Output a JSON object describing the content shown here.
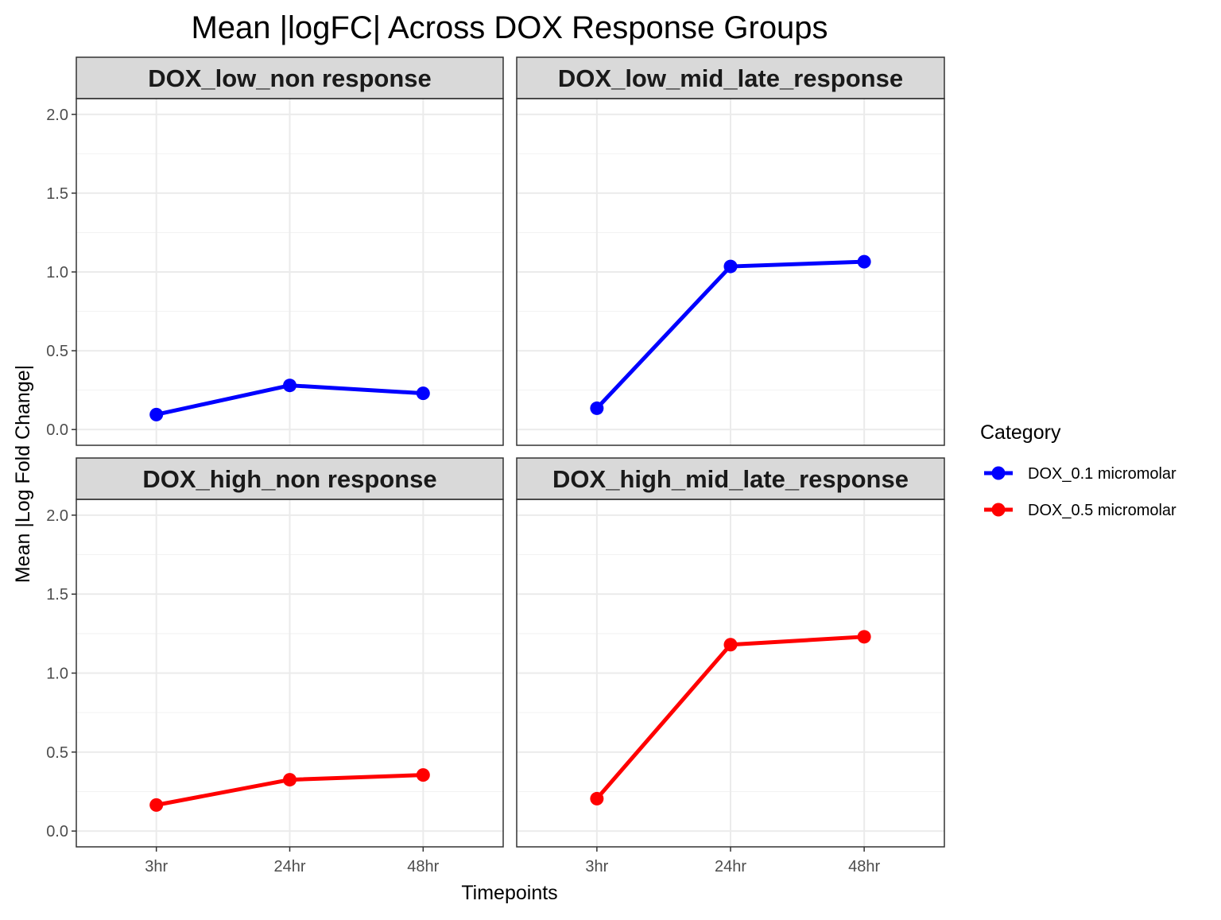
{
  "chart_data": {
    "type": "line",
    "title": "Mean |logFC| Across DOX Response Groups",
    "xlabel": "Timepoints",
    "ylabel": "Mean |Log Fold Change|",
    "x": [
      "3hr",
      "24hr",
      "48hr"
    ],
    "ylim": [
      -0.1,
      2.1
    ],
    "yticks": [
      0.0,
      0.5,
      1.0,
      1.5,
      2.0
    ],
    "ytick_labels": [
      "0.0",
      "0.5",
      "1.0",
      "1.5",
      "2.0"
    ],
    "grid": true,
    "legend": {
      "title": "Category",
      "position": "right",
      "entries": [
        {
          "name": "DOX_0.1 micromolar",
          "color": "#0000FF"
        },
        {
          "name": "DOX_0.5 micromolar",
          "color": "#FF0000"
        }
      ]
    },
    "panels": [
      {
        "label": "DOX_low_non response",
        "series": [
          {
            "name": "DOX_0.1 micromolar",
            "color": "#0000FF",
            "values": [
              0.095,
              0.28,
              0.23
            ]
          }
        ]
      },
      {
        "label": "DOX_low_mid_late_response",
        "series": [
          {
            "name": "DOX_0.1 micromolar",
            "color": "#0000FF",
            "values": [
              0.135,
              1.035,
              1.065
            ]
          }
        ]
      },
      {
        "label": "DOX_high_non response",
        "series": [
          {
            "name": "DOX_0.5 micromolar",
            "color": "#FF0000",
            "values": [
              0.165,
              0.325,
              0.355
            ]
          }
        ]
      },
      {
        "label": "DOX_high_mid_late_response",
        "series": [
          {
            "name": "DOX_0.5 micromolar",
            "color": "#FF0000",
            "values": [
              0.205,
              1.18,
              1.23
            ]
          }
        ]
      }
    ]
  }
}
